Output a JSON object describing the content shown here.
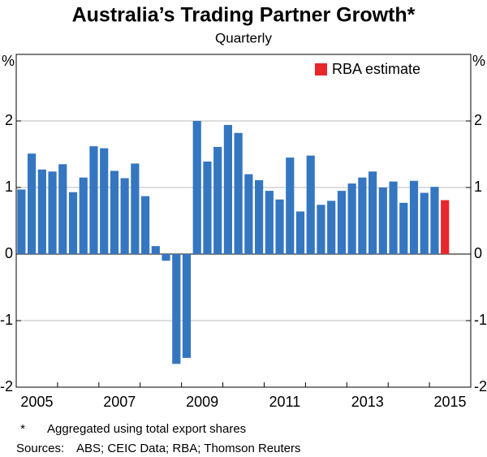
{
  "chart_data": {
    "type": "bar",
    "title": "Australia’s Trading Partner Growth*",
    "subtitle": "Quarterly",
    "y_unit": "%",
    "categories": [
      null,
      null,
      "2005",
      null,
      null,
      null,
      null,
      null,
      null,
      null,
      "2007",
      null,
      null,
      null,
      null,
      null,
      null,
      null,
      "2009",
      null,
      null,
      null,
      null,
      null,
      null,
      null,
      "2011",
      null,
      null,
      null,
      null,
      null,
      null,
      null,
      "2013",
      null,
      null,
      null,
      null,
      null,
      null,
      null,
      "2015",
      null
    ],
    "series": [
      {
        "color": "#3576c1",
        "values": [
          0.97,
          1.51,
          1.27,
          1.24,
          1.35,
          0.93,
          1.15,
          1.62,
          1.59,
          1.25,
          1.14,
          1.36,
          0.87,
          0.12,
          -0.1,
          -1.65,
          -1.56,
          2.0,
          1.39,
          1.61,
          1.94,
          1.82,
          1.2,
          1.11,
          0.95,
          0.82,
          1.45,
          0.64,
          1.48,
          0.74,
          0.8,
          0.95,
          1.06,
          1.15,
          1.24,
          1.0,
          1.09,
          0.77,
          1.1,
          0.92,
          1.01,
          null,
          null,
          null
        ]
      },
      {
        "name": "RBA estimate",
        "color": "#e8262b",
        "values": [
          null,
          null,
          null,
          null,
          null,
          null,
          null,
          null,
          null,
          null,
          null,
          null,
          null,
          null,
          null,
          null,
          null,
          null,
          null,
          null,
          null,
          null,
          null,
          null,
          null,
          null,
          null,
          null,
          null,
          null,
          null,
          null,
          null,
          null,
          null,
          null,
          null,
          null,
          null,
          null,
          null,
          0.81,
          null,
          null
        ]
      }
    ],
    "ylim": [
      -2,
      3
    ],
    "yticks": [
      -2,
      -1,
      0,
      1,
      2
    ],
    "grid": true,
    "footnote": {
      "marker": "*",
      "text": "Aggregated using total export shares"
    },
    "sources": {
      "label": "Sources:",
      "text": "ABS; CEIC Data; RBA; Thomson Reuters"
    }
  }
}
